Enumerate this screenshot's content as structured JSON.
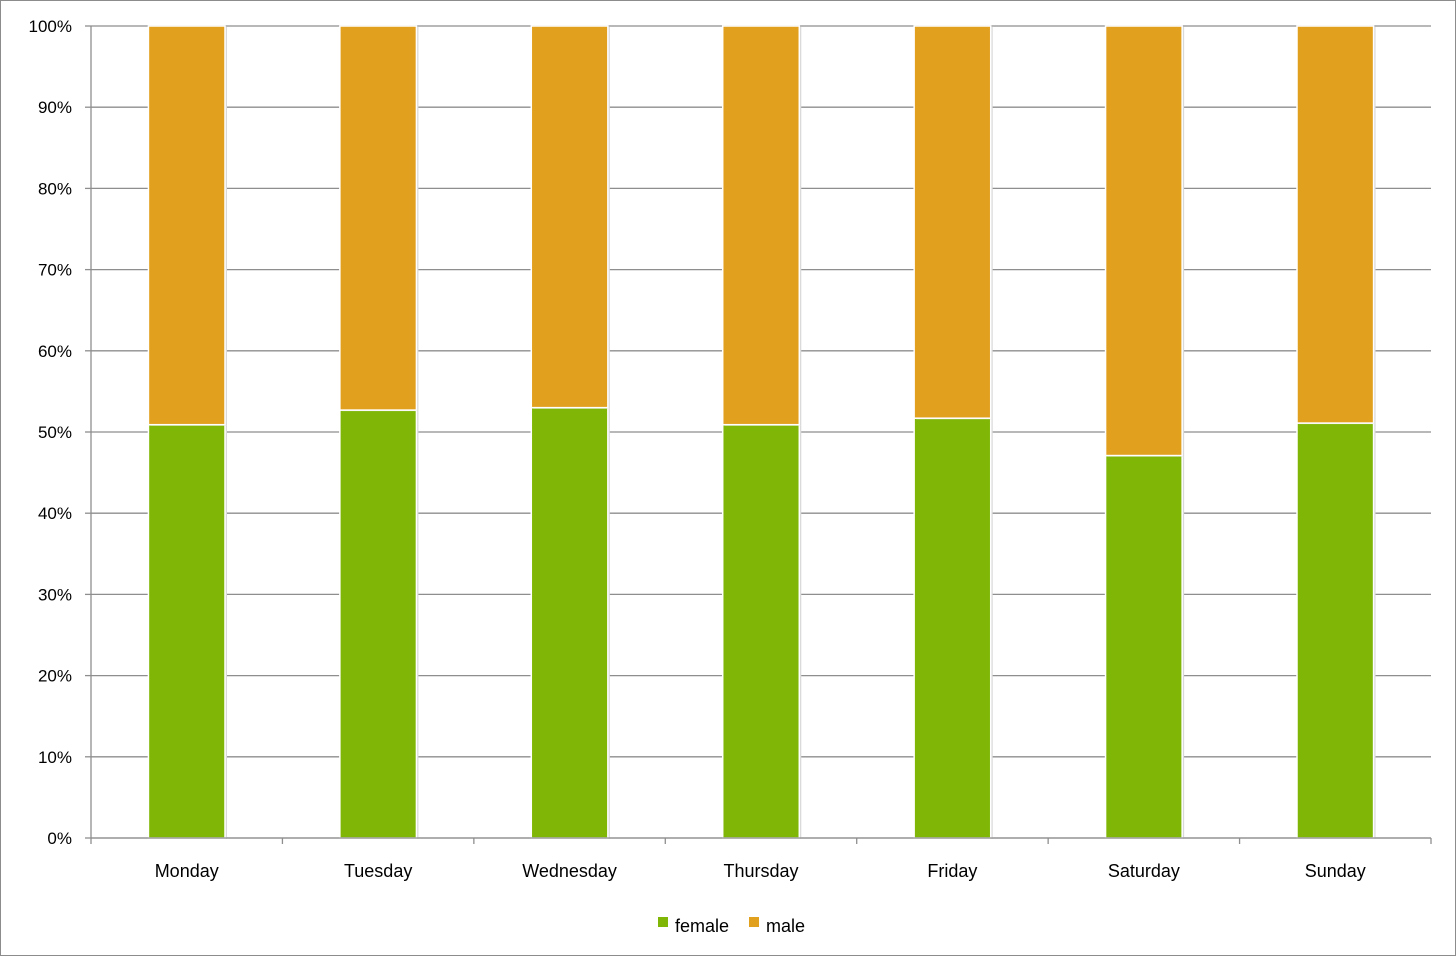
{
  "chart_data": {
    "type": "bar",
    "stacked": true,
    "percent_stacked": true,
    "categories": [
      "Monday",
      "Tuesday",
      "Wednesday",
      "Thursday",
      "Friday",
      "Saturday",
      "Sunday"
    ],
    "series": [
      {
        "name": "female",
        "color": "#80b706",
        "values": [
          50.9,
          52.7,
          53.0,
          50.9,
          51.7,
          47.1,
          51.1
        ]
      },
      {
        "name": "male",
        "color": "#e2a01f",
        "values": [
          49.1,
          47.3,
          47.0,
          49.1,
          48.3,
          52.9,
          48.9
        ]
      }
    ],
    "y_ticks": [
      "0%",
      "10%",
      "20%",
      "30%",
      "40%",
      "50%",
      "60%",
      "70%",
      "80%",
      "90%",
      "100%"
    ],
    "ylim": [
      0,
      100
    ],
    "grid": true,
    "legend_position": "bottom",
    "title": "",
    "xlabel": "",
    "ylabel": ""
  }
}
